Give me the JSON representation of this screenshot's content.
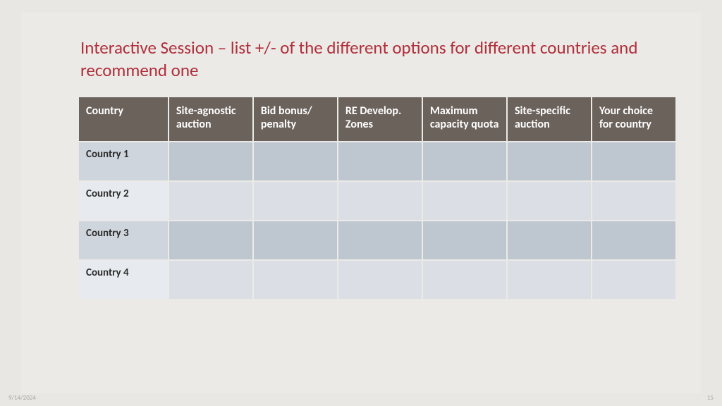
{
  "title": "Interactive Session – list +/- of the different options for different countries and recommend one",
  "table": {
    "type": "table",
    "header_bg": "#6b625c",
    "header_fg": "#ffffff",
    "band_a_cell_bg": "#bec6d0",
    "band_a_label_bg": "#cfd5dc",
    "band_b_cell_bg": "#dbdfe5",
    "band_b_label_bg": "#e7eaee",
    "columns": [
      "Country",
      "Site-agnostic auction",
      "Bid bonus/ penalty",
      "RE Develop. Zones",
      "Maximum capacity quota",
      "Site-specific auction",
      "Your choice for country"
    ],
    "rows": [
      {
        "label": "Country 1",
        "cells": [
          "",
          "",
          "",
          "",
          "",
          ""
        ]
      },
      {
        "label": "Country 2",
        "cells": [
          "",
          "",
          "",
          "",
          "",
          ""
        ]
      },
      {
        "label": "Country 3",
        "cells": [
          "",
          "",
          "",
          "",
          "",
          ""
        ]
      },
      {
        "label": "Country 4",
        "cells": [
          "",
          "",
          "",
          "",
          "",
          ""
        ]
      }
    ]
  },
  "footer": {
    "date": "9/14/2024",
    "page": "15"
  },
  "colors": {
    "slide_bg": "#ebeae7",
    "page_bg": "#e8e7e4",
    "title_color": "#b02e3a"
  }
}
